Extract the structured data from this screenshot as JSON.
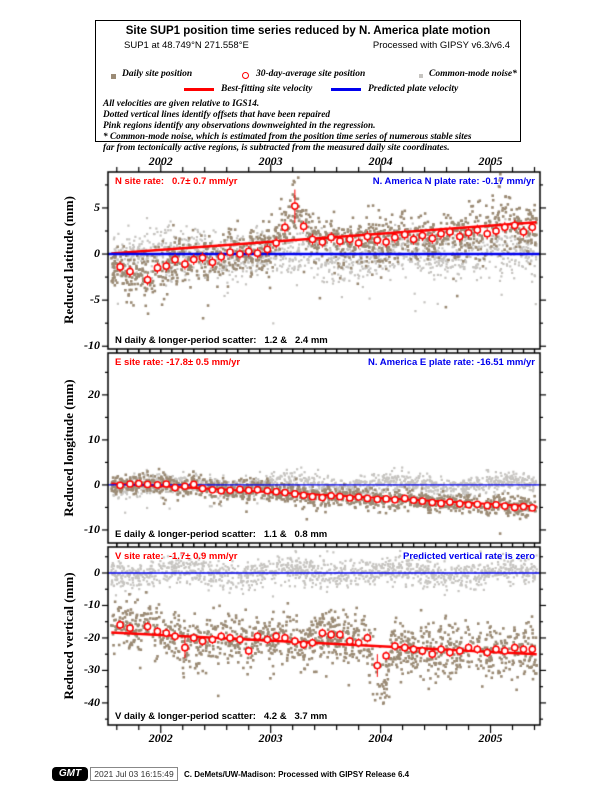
{
  "header": {
    "title": "Site SUP1 position time series reduced by N. America plate motion",
    "site_line_left": "SUP1 at 48.749°N 271.558°E",
    "site_line_right": "Processed with GIPSY v6.3/v6.4",
    "legend": [
      {
        "marker": "square",
        "color": "#9b8b75",
        "label": "Daily site position"
      },
      {
        "marker": "circle",
        "color": "#ff0000",
        "label": "30-day-average site position"
      },
      {
        "marker": "square",
        "color": "#c6c4c0",
        "label": "Common-mode noise*"
      },
      {
        "marker": "line",
        "color": "#ff0000",
        "label": "Best-fitting site velocity"
      },
      {
        "marker": "line",
        "color": "#0000ee",
        "label": "Predicted plate velocity"
      }
    ],
    "notes": [
      "All velocities are given relative to IGS14.",
      "Dotted vertical lines identify offsets that have been repaired",
      "Pink regions identify any observations downweighted in the regression.",
      "* Common-mode noise, which is estimated from the position time series of numerous stable sites",
      "far from tectonically active regions, is subtracted from the measured daily site coordinates."
    ]
  },
  "colors": {
    "daily": "#9b8b75",
    "common_mode": "#c6c4c0",
    "red": "#ff0000",
    "blue": "#0000ee",
    "frame": "#000000"
  },
  "chart_data": [
    {
      "type": "scatter",
      "name": "north",
      "ylabel": "Reduced latitude (mm)",
      "rate_label": "N site rate:   0.7± 0.7 mm/yr",
      "plate_label": "N. America N plate rate: -0.17 mm/yr",
      "scatter_label": "N daily & longer-period scatter:   1.2 &   2.4 mm",
      "xlim": [
        2001.52,
        2005.45
      ],
      "x_year_ticks": [
        2002,
        2003,
        2004,
        2005
      ],
      "x_minor_step": 0.2,
      "ylim": [
        -10.3,
        8.9
      ],
      "yticks": [
        5,
        0,
        -5,
        -10
      ],
      "ytick_minor": 2.5,
      "blue_line_y": 0,
      "trend": {
        "x": [
          2001.55,
          2005.42
        ],
        "y": [
          0.05,
          3.45
        ]
      },
      "daily_scatter_mm": 1.2,
      "longer_period_scatter_mm": 2.4,
      "daily_sd": 1.35,
      "common_sd": 1.3,
      "common_center": 0,
      "errorbars": {
        "default": 0.6,
        "special": [
          [
            2003.22,
            1.8
          ]
        ]
      },
      "monthly_avg": [
        [
          2001.63,
          -1.4
        ],
        [
          2001.72,
          -1.9
        ],
        [
          2001.88,
          -2.8
        ],
        [
          2001.97,
          -1.5
        ],
        [
          2002.05,
          -1.3
        ],
        [
          2002.13,
          -0.6
        ],
        [
          2002.22,
          -1.1
        ],
        [
          2002.3,
          -0.6
        ],
        [
          2002.38,
          -0.4
        ],
        [
          2002.47,
          -0.9
        ],
        [
          2002.55,
          -0.3
        ],
        [
          2002.63,
          0.2
        ],
        [
          2002.72,
          0.0
        ],
        [
          2002.8,
          0.3
        ],
        [
          2002.88,
          0.1
        ],
        [
          2002.97,
          0.5
        ],
        [
          2003.05,
          1.2
        ],
        [
          2003.13,
          2.9
        ],
        [
          2003.22,
          5.2
        ],
        [
          2003.3,
          3.0
        ],
        [
          2003.38,
          1.6
        ],
        [
          2003.47,
          1.3
        ],
        [
          2003.55,
          1.8
        ],
        [
          2003.63,
          1.4
        ],
        [
          2003.72,
          1.6
        ],
        [
          2003.8,
          1.2
        ],
        [
          2003.88,
          1.9
        ],
        [
          2003.97,
          1.5
        ],
        [
          2004.05,
          1.3
        ],
        [
          2004.13,
          1.8
        ],
        [
          2004.22,
          2.1
        ],
        [
          2004.3,
          1.6
        ],
        [
          2004.38,
          2.0
        ],
        [
          2004.47,
          1.7
        ],
        [
          2004.55,
          2.2
        ],
        [
          2004.63,
          2.4
        ],
        [
          2004.72,
          1.9
        ],
        [
          2004.8,
          2.3
        ],
        [
          2004.88,
          2.6
        ],
        [
          2004.97,
          2.2
        ],
        [
          2005.05,
          2.5
        ],
        [
          2005.13,
          2.9
        ],
        [
          2005.22,
          3.1
        ],
        [
          2005.3,
          2.4
        ],
        [
          2005.38,
          2.9
        ]
      ]
    },
    {
      "type": "scatter",
      "name": "east",
      "ylabel": "Reduced longitude (mm)",
      "rate_label": "E site rate: -17.8± 0.5 mm/yr",
      "plate_label": "N. America E plate rate: -16.51 mm/yr",
      "scatter_label": "E daily & longer-period scatter:   1.1 &   0.8 mm",
      "xlim": [
        2001.52,
        2005.45
      ],
      "x_year_ticks": [
        2002,
        2003,
        2004,
        2005
      ],
      "x_minor_step": 0.2,
      "ylim": [
        -12.9,
        29.3
      ],
      "yticks": [
        20,
        10,
        0,
        -10
      ],
      "ytick_minor": 5,
      "blue_line_y": 0,
      "trend": {
        "x": [
          2001.55,
          2005.42
        ],
        "y": [
          0.3,
          -4.8
        ]
      },
      "daily_scatter_mm": 1.1,
      "longer_period_scatter_mm": 0.8,
      "daily_sd": 1.15,
      "common_sd": 1.15,
      "common_center": 0,
      "errorbars": {
        "default": 0.5,
        "special": []
      },
      "monthly_avg": [
        [
          2001.63,
          -0.1
        ],
        [
          2001.72,
          0.2
        ],
        [
          2001.8,
          0.3
        ],
        [
          2001.88,
          0.1
        ],
        [
          2001.97,
          0.0
        ],
        [
          2002.05,
          0.2
        ],
        [
          2002.13,
          -0.6
        ],
        [
          2002.22,
          -0.3
        ],
        [
          2002.3,
          0.1
        ],
        [
          2002.38,
          -0.8
        ],
        [
          2002.47,
          -1.1
        ],
        [
          2002.55,
          -1.3
        ],
        [
          2002.63,
          -1.2
        ],
        [
          2002.72,
          -1.0
        ],
        [
          2002.8,
          -1.2
        ],
        [
          2002.88,
          -1.1
        ],
        [
          2002.97,
          -1.3
        ],
        [
          2003.05,
          -1.5
        ],
        [
          2003.13,
          -1.7
        ],
        [
          2003.22,
          -2.0
        ],
        [
          2003.3,
          -2.3
        ],
        [
          2003.38,
          -2.6
        ],
        [
          2003.47,
          -2.8
        ],
        [
          2003.55,
          -2.4
        ],
        [
          2003.63,
          -2.6
        ],
        [
          2003.72,
          -2.9
        ],
        [
          2003.8,
          -2.7
        ],
        [
          2003.88,
          -3.0
        ],
        [
          2003.97,
          -3.2
        ],
        [
          2004.05,
          -3.1
        ],
        [
          2004.13,
          -3.3
        ],
        [
          2004.22,
          -3.0
        ],
        [
          2004.3,
          -3.4
        ],
        [
          2004.38,
          -3.6
        ],
        [
          2004.47,
          -3.9
        ],
        [
          2004.55,
          -4.1
        ],
        [
          2004.63,
          -3.8
        ],
        [
          2004.72,
          -4.2
        ],
        [
          2004.8,
          -4.4
        ],
        [
          2004.88,
          -4.3
        ],
        [
          2004.97,
          -4.6
        ],
        [
          2005.05,
          -4.4
        ],
        [
          2005.13,
          -4.7
        ],
        [
          2005.22,
          -5.0
        ],
        [
          2005.3,
          -4.8
        ],
        [
          2005.38,
          -5.1
        ]
      ]
    },
    {
      "type": "scatter",
      "name": "vertical",
      "ylabel": "Reduced vertical (mm)",
      "rate_label": "V site rate:  -1.7± 0.9 mm/yr",
      "plate_label": "Predicted vertical rate is zero",
      "scatter_label": "V daily & longer-period scatter:   4.2 &   3.7 mm",
      "xlim": [
        2001.52,
        2005.45
      ],
      "x_year_ticks": [
        2002,
        2003,
        2004,
        2005
      ],
      "x_minor_step": 0.2,
      "ylim": [
        -46.8,
        8.0
      ],
      "yticks": [
        0,
        -10,
        -20,
        -30,
        -40
      ],
      "ytick_minor": 5,
      "blue_line_y": 0,
      "trend": {
        "x": [
          2001.55,
          2005.42
        ],
        "y": [
          -18.3,
          -25.0
        ]
      },
      "daily_scatter_mm": 4.2,
      "longer_period_scatter_mm": 3.7,
      "daily_sd": 4.2,
      "common_sd": 2.1,
      "common_center": 0,
      "errorbars": {
        "default": 1.4,
        "special": [
          [
            2002.22,
            3.2
          ],
          [
            2003.97,
            3.5
          ]
        ]
      },
      "monthly_avg": [
        [
          2001.63,
          -16.0
        ],
        [
          2001.72,
          -17.0
        ],
        [
          2001.88,
          -16.5
        ],
        [
          2001.97,
          -18.0
        ],
        [
          2002.05,
          -18.5
        ],
        [
          2002.13,
          -19.5
        ],
        [
          2002.22,
          -23.0
        ],
        [
          2002.3,
          -20.0
        ],
        [
          2002.38,
          -21.0
        ],
        [
          2002.47,
          -20.5
        ],
        [
          2002.55,
          -19.5
        ],
        [
          2002.63,
          -20.0
        ],
        [
          2002.72,
          -20.5
        ],
        [
          2002.8,
          -24.0
        ],
        [
          2002.88,
          -19.5
        ],
        [
          2002.97,
          -20.5
        ],
        [
          2003.05,
          -19.5
        ],
        [
          2003.13,
          -20.0
        ],
        [
          2003.22,
          -21.0
        ],
        [
          2003.3,
          -22.0
        ],
        [
          2003.38,
          -21.5
        ],
        [
          2003.47,
          -18.5
        ],
        [
          2003.55,
          -19.0
        ],
        [
          2003.63,
          -19.0
        ],
        [
          2003.72,
          -21.0
        ],
        [
          2003.8,
          -21.5
        ],
        [
          2003.88,
          -20.0
        ],
        [
          2003.97,
          -28.5
        ],
        [
          2004.05,
          -25.5
        ],
        [
          2004.13,
          -22.5
        ],
        [
          2004.22,
          -23.0
        ],
        [
          2004.3,
          -23.5
        ],
        [
          2004.38,
          -24.0
        ],
        [
          2004.47,
          -25.0
        ],
        [
          2004.55,
          -23.5
        ],
        [
          2004.63,
          -24.5
        ],
        [
          2004.72,
          -24.0
        ],
        [
          2004.8,
          -23.0
        ],
        [
          2004.88,
          -23.5
        ],
        [
          2004.97,
          -24.5
        ],
        [
          2005.05,
          -23.5
        ],
        [
          2005.13,
          -24.0
        ],
        [
          2005.22,
          -23.0
        ],
        [
          2005.3,
          -23.5
        ],
        [
          2005.38,
          -23.5
        ]
      ]
    }
  ],
  "footer": {
    "logo": "GMT",
    "timestamp": "2021 Jul 03 16:15:49",
    "credit": "C. DeMets/UW-Madison: Processed with GIPSY Release 6.4"
  }
}
